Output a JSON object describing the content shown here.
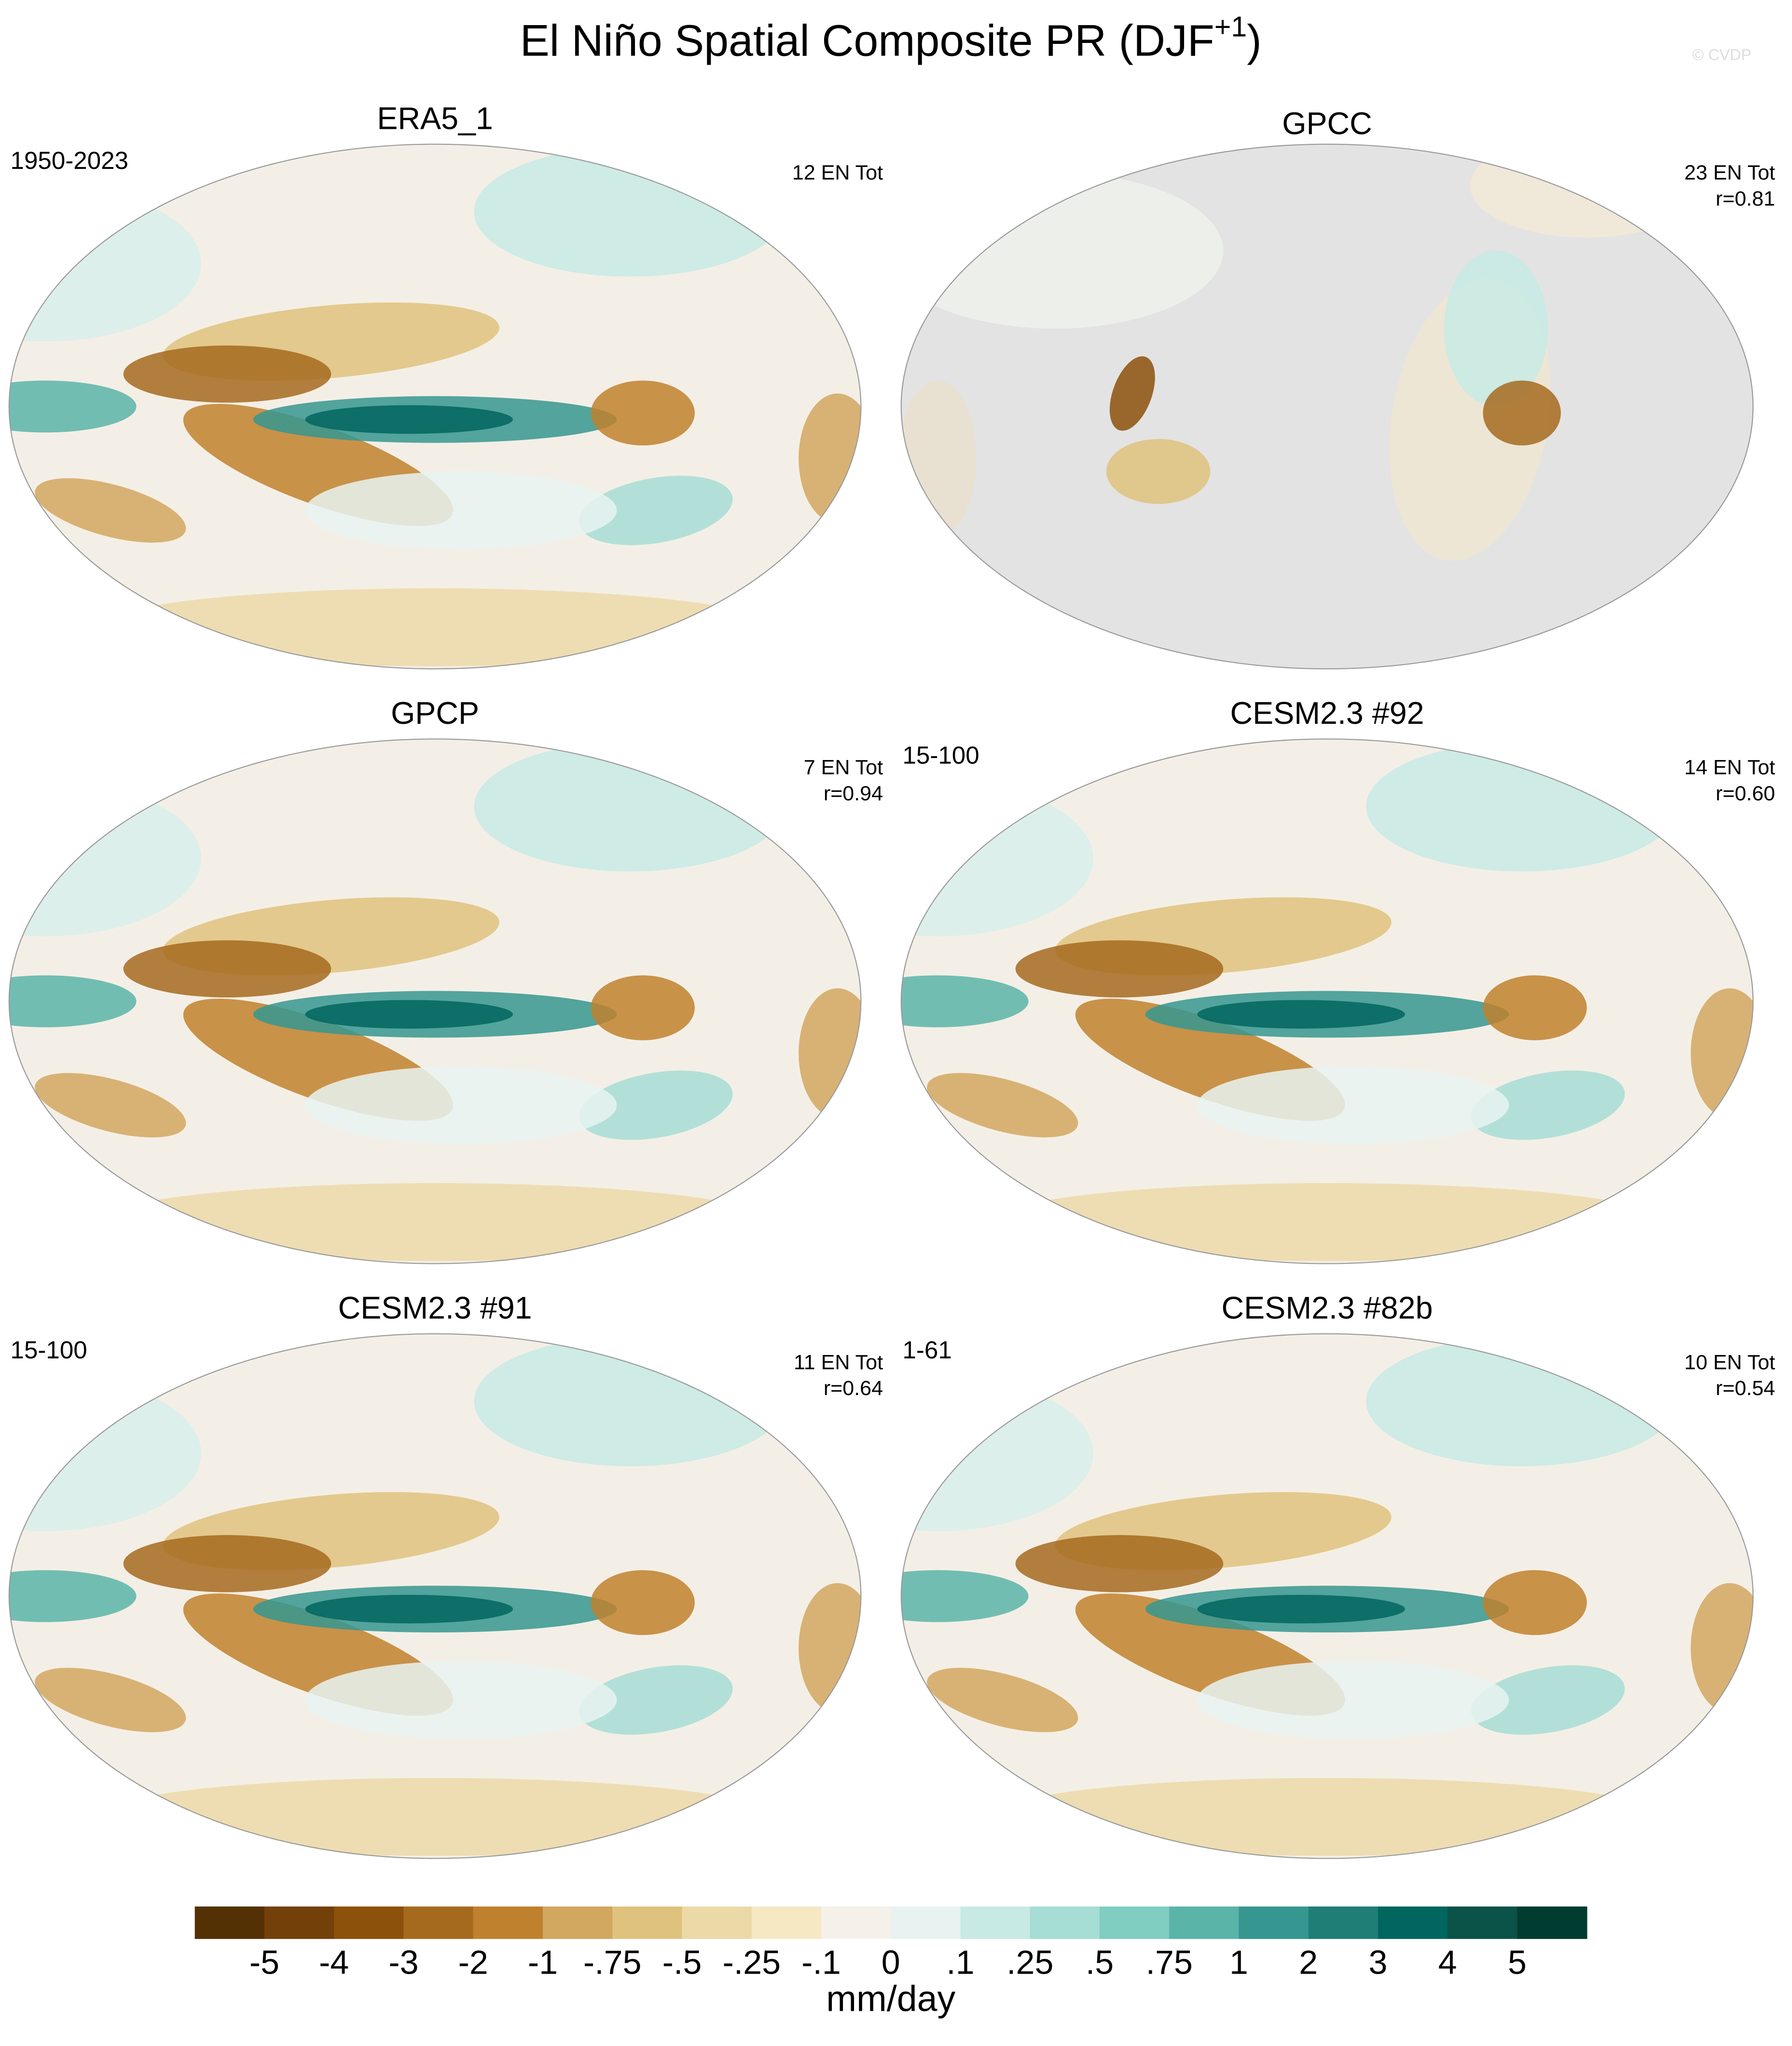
{
  "title": {
    "text": "El Niño Spatial Composite PR (DJF",
    "superscript": "+1",
    "end": ")"
  },
  "watermark": "© CVDP",
  "panels": [
    {
      "title": "ERA5_1",
      "period": "1950-2023",
      "stats": [
        "12 EN Tot"
      ]
    },
    {
      "title": "GPCC",
      "stats": [
        "23 EN Tot",
        "r=0.81"
      ]
    },
    {
      "title": "GPCP",
      "stats": [
        "7 EN Tot",
        "r=0.94"
      ]
    },
    {
      "title": "CESM2.3 #92",
      "period": "15-100",
      "stats": [
        "14 EN Tot",
        "r=0.60"
      ]
    },
    {
      "title": "CESM2.3 #91",
      "period": "15-100",
      "stats": [
        "11 EN Tot",
        "r=0.64"
      ]
    },
    {
      "title": "CESM2.3 #82b",
      "period": "1-61",
      "stats": [
        "10 EN Tot",
        "r=0.54"
      ]
    }
  ],
  "colorbar": {
    "unit": "mm/day",
    "levels": [
      -5,
      -4,
      -3,
      -2,
      -1,
      {
        "value": -0.75,
        "label": "-.75"
      },
      {
        "value": -0.5,
        "label": "-.5"
      },
      {
        "value": -0.25,
        "label": "-.25"
      },
      {
        "value": -0.1,
        "label": "-.1"
      },
      0,
      {
        "value": 0.1,
        "label": ".1"
      },
      {
        "value": 0.25,
        "label": ".25"
      },
      {
        "value": 0.5,
        "label": ".5"
      },
      {
        "value": 0.75,
        "label": ".75"
      },
      1,
      2,
      3,
      4,
      5
    ],
    "colors": [
      "#543005",
      "#74400a",
      "#8c510a",
      "#a66a1e",
      "#bf812d",
      "#d2a75f",
      "#dfc27d",
      "#ecd9a8",
      "#f6e8c3",
      "#f5f1ea",
      "#e8f3f1",
      "#c7eae5",
      "#a6ddd5",
      "#80cdc1",
      "#5ab4a8",
      "#35978f",
      "#1f7f76",
      "#01665e",
      "#0b5248",
      "#003c30"
    ]
  }
}
